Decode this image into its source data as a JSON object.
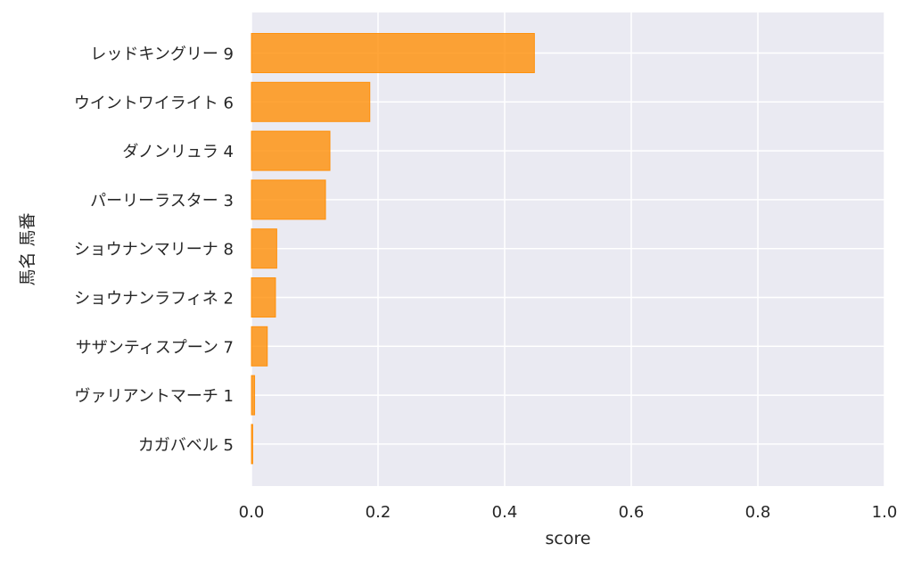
{
  "chart_data": {
    "type": "bar",
    "orientation": "horizontal",
    "categories": [
      "レッドキングリー 9",
      "ウイントワイライト 6",
      "ダノンリュラ 4",
      "パーリーラスター 3",
      "ショウナンマリーナ 8",
      "ショウナンラフィネ 2",
      "サザンティスプーン 7",
      "ヴァリアントマーチ 1",
      "カガバベル 5"
    ],
    "values": [
      0.447,
      0.187,
      0.124,
      0.117,
      0.04,
      0.038,
      0.025,
      0.005,
      0.002
    ],
    "xlabel": "score",
    "ylabel": "馬名 馬番",
    "xlim": [
      0,
      1.0
    ],
    "xticks": [
      "0.0",
      "0.2",
      "0.4",
      "0.6",
      "0.8",
      "1.0"
    ],
    "grid": true,
    "bar_color": "#ff8c00",
    "plot_background": "#eaeaf2",
    "grid_color": "#ffffff"
  }
}
